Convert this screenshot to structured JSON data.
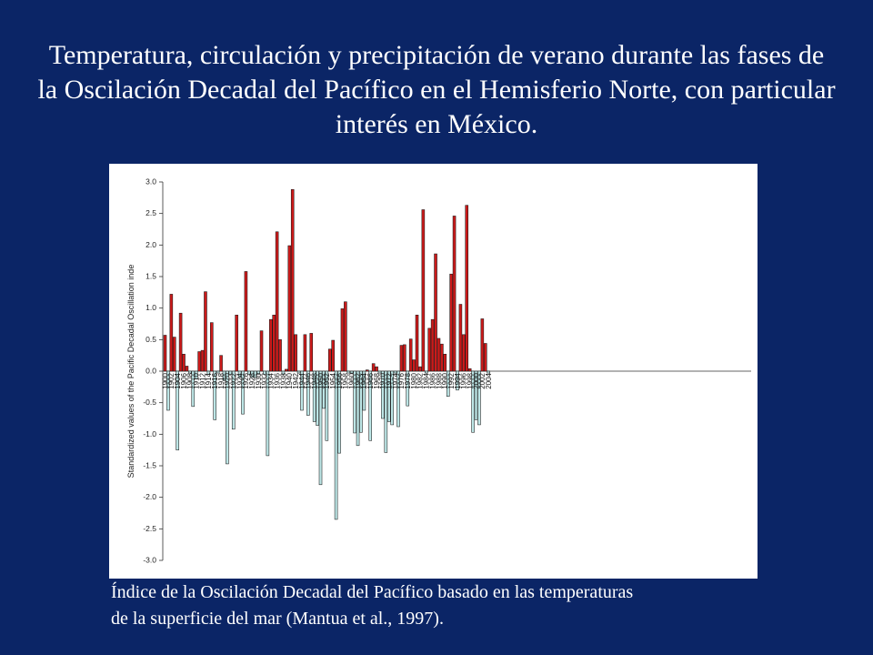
{
  "slide": {
    "title": "Temperatura, circulación y precipitación de verano durante las fases de la Oscilación Decadal del Pacífico en el Hemisferio Norte, con particular interés en México.",
    "caption_line1": "Índice de la Oscilación Decadal del Pacífico basado en las temperaturas",
    "caption_line2": "de la superficie del mar (Mantua et al., 1997).",
    "background_color": "#0b2566"
  },
  "chart_data": {
    "type": "bar",
    "title": "",
    "xlabel": "",
    "ylabel": "Standardized values of the Pacific Decadal Oscillation inde",
    "ylim": [
      -3.0,
      3.0
    ],
    "yticks": [
      "3.0",
      "2.5",
      "2.0",
      "1.5",
      "1.0",
      "0.5",
      "0.0",
      "-0.5",
      "-1.0",
      "-1.5",
      "-2.0",
      "-2.5",
      "-3.0"
    ],
    "ytick_values": [
      3.0,
      2.5,
      2.0,
      1.5,
      1.0,
      0.5,
      0.0,
      -0.5,
      -1.0,
      -1.5,
      -2.0,
      -2.5,
      -3.0
    ],
    "xticks": [
      "1900",
      "1902",
      "1904",
      "1906",
      "1908",
      "1910",
      "1912",
      "1914",
      "1916",
      "1918",
      "1920",
      "1922",
      "1924",
      "1926",
      "1928",
      "1930",
      "1932",
      "1934",
      "1936",
      "1938",
      "1940",
      "1942",
      "1944",
      "1946",
      "1948",
      "1950",
      "1952",
      "1954",
      "1956",
      "1958",
      "1960",
      "1962",
      "1964",
      "1966",
      "1968",
      "1970",
      "1972",
      "1974",
      "1976",
      "1978",
      "1980",
      "1982",
      "1984",
      "1986",
      "1988",
      "1990",
      "1992",
      "1994",
      "1996",
      "1998",
      "2000",
      "2002",
      "2004"
    ],
    "positive_color": "#cc1a1a",
    "negative_color": "#bde6e6",
    "years": [
      1900,
      1901,
      1902,
      1903,
      1904,
      1905,
      1906,
      1907,
      1908,
      1909,
      1910,
      1911,
      1912,
      1913,
      1914,
      1915,
      1916,
      1917,
      1918,
      1919,
      1920,
      1921,
      1922,
      1923,
      1924,
      1925,
      1926,
      1927,
      1928,
      1929,
      1930,
      1931,
      1932,
      1933,
      1934,
      1935,
      1936,
      1937,
      1938,
      1939,
      1940,
      1941,
      1942,
      1943,
      1944,
      1945,
      1946,
      1947,
      1948,
      1949,
      1950,
      1951,
      1952,
      1953,
      1954,
      1955,
      1956,
      1957,
      1958,
      1959,
      1960,
      1961,
      1962,
      1963,
      1964,
      1965,
      1966,
      1967,
      1968,
      1969,
      1970,
      1971,
      1972,
      1973,
      1974,
      1975,
      1976,
      1977,
      1978,
      1979,
      1980,
      1981,
      1982,
      1983,
      1984,
      1985,
      1986,
      1987,
      1988,
      1989,
      1990,
      1991,
      1992,
      1993,
      1994,
      1995,
      1996,
      1997,
      1998,
      1999,
      2000,
      2001,
      2002,
      2003,
      2004
    ],
    "values": [
      0.57,
      -0.62,
      1.22,
      0.54,
      -1.25,
      0.92,
      0.27,
      0.08,
      -0.03,
      -0.56,
      -0.12,
      0.31,
      0.33,
      1.26,
      -0.05,
      0.77,
      -0.77,
      -0.03,
      0.25,
      -0.15,
      -1.47,
      -0.05,
      -0.92,
      0.89,
      -0.1,
      -0.68,
      1.58,
      -0.05,
      -0.1,
      -0.1,
      -0.05,
      0.64,
      -0.05,
      -1.34,
      0.82,
      0.89,
      2.21,
      0.5,
      -0.05,
      0.03,
      1.99,
      2.88,
      0.58,
      -0.03,
      -0.62,
      0.58,
      -0.7,
      0.6,
      -0.8,
      -0.86,
      -1.8,
      -0.59,
      -1.1,
      0.35,
      0.49,
      -2.35,
      -1.3,
      0.99,
      1.1,
      -0.03,
      -0.03,
      -0.98,
      -1.18,
      -0.97,
      -0.62,
      0.02,
      -1.1,
      0.12,
      0.07,
      -0.03,
      -0.75,
      -1.29,
      -0.8,
      -0.85,
      -0.03,
      -0.88,
      0.41,
      0.42,
      -0.55,
      0.51,
      0.18,
      0.89,
      0.07,
      2.56,
      -0.03,
      0.68,
      0.82,
      1.86,
      0.52,
      0.43,
      0.27,
      -0.4,
      1.54,
      2.46,
      -0.3,
      1.06,
      0.58,
      2.63,
      0.04,
      -0.97,
      -0.77,
      -0.85,
      0.83,
      0.44,
      -0.03
    ]
  }
}
